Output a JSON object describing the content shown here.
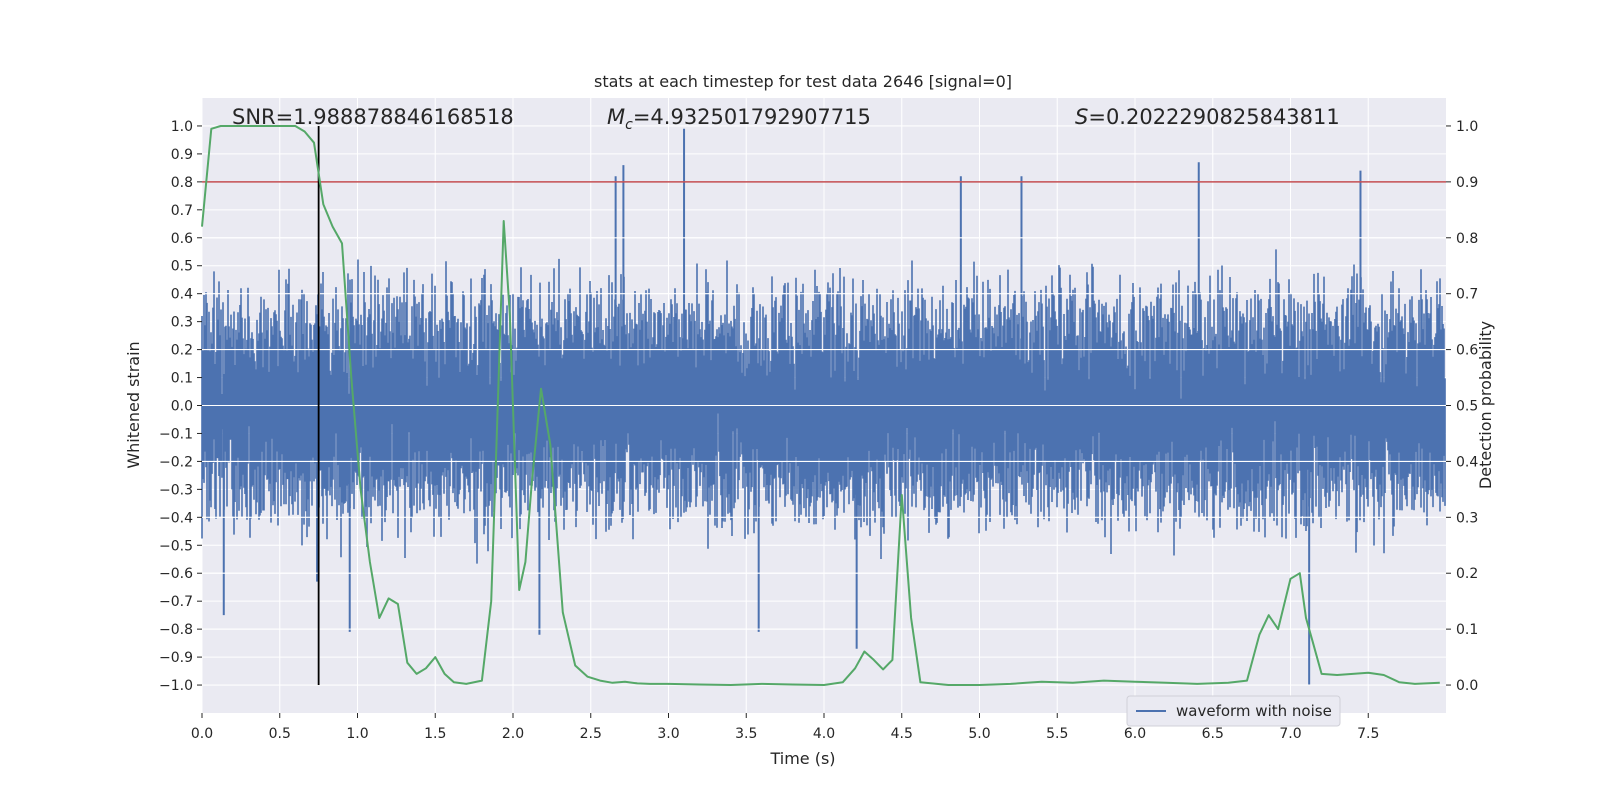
{
  "chart_data": {
    "type": "line",
    "title": "stats at each timestep for test data 2646 [signal=0]",
    "xlabel": "Time (s)",
    "ylabel": "Whitened strain",
    "y2label": "Detection probability",
    "xlim": [
      0.0,
      8.0
    ],
    "ylim": [
      -1.1,
      1.1
    ],
    "y2lim": [
      -0.05,
      1.05
    ],
    "x_ticks": [
      "0.0",
      "0.5",
      "1.0",
      "1.5",
      "2.0",
      "2.5",
      "3.0",
      "3.5",
      "4.0",
      "4.5",
      "5.0",
      "5.5",
      "6.0",
      "6.5",
      "7.0",
      "7.5"
    ],
    "y_ticks": [
      "1.0",
      "0.9",
      "0.8",
      "0.7",
      "0.6",
      "0.5",
      "0.4",
      "0.3",
      "0.2",
      "0.1",
      "0.0",
      "−0.1",
      "−0.2",
      "−0.3",
      "−0.4",
      "−0.5",
      "−0.6",
      "−0.7",
      "−0.8",
      "−0.9",
      "−1.0"
    ],
    "y2_ticks": [
      "1.0",
      "0.9",
      "0.8",
      "0.7",
      "0.6",
      "0.5",
      "0.4",
      "0.3",
      "0.2",
      "0.1",
      "0.0"
    ],
    "annotations": {
      "snr_label": "SNR=1.988878846168518",
      "mc_symbol": "M",
      "mc_sub": "c",
      "mc_value": "=4.932501792907715",
      "s_symbol": "S",
      "s_value": "=0.2022290825843811"
    },
    "legend": {
      "label": "waveform with noise",
      "position": "lower-right"
    },
    "series": [
      {
        "name": "waveform with noise",
        "color": "#4c72b0",
        "axis": "left",
        "style": "dense noise, envelope approx ±0.45 with spikes",
        "spikes": [
          {
            "x": 0.14,
            "y": -0.75
          },
          {
            "x": 0.74,
            "y": -0.63
          },
          {
            "x": 0.95,
            "y": -0.81
          },
          {
            "x": 2.17,
            "y": -0.82
          },
          {
            "x": 2.66,
            "y": 0.82
          },
          {
            "x": 2.71,
            "y": 0.86
          },
          {
            "x": 3.1,
            "y": 0.99
          },
          {
            "x": 3.58,
            "y": -0.81
          },
          {
            "x": 4.21,
            "y": -0.87
          },
          {
            "x": 4.88,
            "y": 0.82
          },
          {
            "x": 5.27,
            "y": 0.82
          },
          {
            "x": 6.41,
            "y": 0.87
          },
          {
            "x": 7.12,
            "y": -1.0
          },
          {
            "x": 7.45,
            "y": 0.84
          }
        ]
      },
      {
        "name": "detection probability",
        "color": "#55a868",
        "axis": "right",
        "x": [
          0.0,
          0.06,
          0.12,
          0.18,
          0.3,
          0.45,
          0.6,
          0.66,
          0.72,
          0.78,
          0.84,
          0.9,
          0.96,
          1.02,
          1.08,
          1.14,
          1.2,
          1.26,
          1.32,
          1.38,
          1.44,
          1.5,
          1.56,
          1.62,
          1.7,
          1.8,
          1.86,
          1.9,
          1.94,
          1.98,
          2.04,
          2.08,
          2.12,
          2.18,
          2.24,
          2.32,
          2.4,
          2.48,
          2.56,
          2.64,
          2.72,
          2.8,
          2.88,
          3.0,
          3.2,
          3.4,
          3.6,
          3.8,
          4.0,
          4.12,
          4.2,
          4.26,
          4.32,
          4.38,
          4.44,
          4.5,
          4.56,
          4.62,
          4.8,
          5.0,
          5.2,
          5.3,
          5.4,
          5.6,
          5.8,
          6.0,
          6.2,
          6.4,
          6.6,
          6.72,
          6.8,
          6.86,
          6.92,
          7.0,
          7.06,
          7.1,
          7.14,
          7.2,
          7.3,
          7.4,
          7.5,
          7.6,
          7.7,
          7.8,
          7.96
        ],
        "values": [
          0.82,
          0.995,
          1.0,
          1.0,
          1.0,
          1.0,
          1.0,
          0.99,
          0.97,
          0.86,
          0.82,
          0.79,
          0.55,
          0.35,
          0.22,
          0.12,
          0.155,
          0.145,
          0.04,
          0.02,
          0.03,
          0.05,
          0.02,
          0.005,
          0.002,
          0.008,
          0.15,
          0.48,
          0.83,
          0.66,
          0.17,
          0.22,
          0.36,
          0.53,
          0.43,
          0.13,
          0.035,
          0.015,
          0.008,
          0.004,
          0.006,
          0.003,
          0.002,
          0.002,
          0.001,
          0.0,
          0.002,
          0.001,
          0.0,
          0.005,
          0.03,
          0.06,
          0.045,
          0.028,
          0.045,
          0.34,
          0.12,
          0.005,
          0.0,
          0.0,
          0.002,
          0.004,
          0.006,
          0.004,
          0.008,
          0.006,
          0.004,
          0.002,
          0.004,
          0.008,
          0.09,
          0.125,
          0.1,
          0.19,
          0.2,
          0.12,
          0.08,
          0.02,
          0.018,
          0.02,
          0.022,
          0.018,
          0.005,
          0.002,
          0.004
        ]
      },
      {
        "name": "threshold",
        "color": "#c44e52",
        "axis": "right",
        "value": 0.9
      },
      {
        "name": "marker",
        "color": "#000000",
        "axis": "left",
        "x": 0.75,
        "y_range": [
          -1.0,
          1.0
        ]
      }
    ]
  }
}
